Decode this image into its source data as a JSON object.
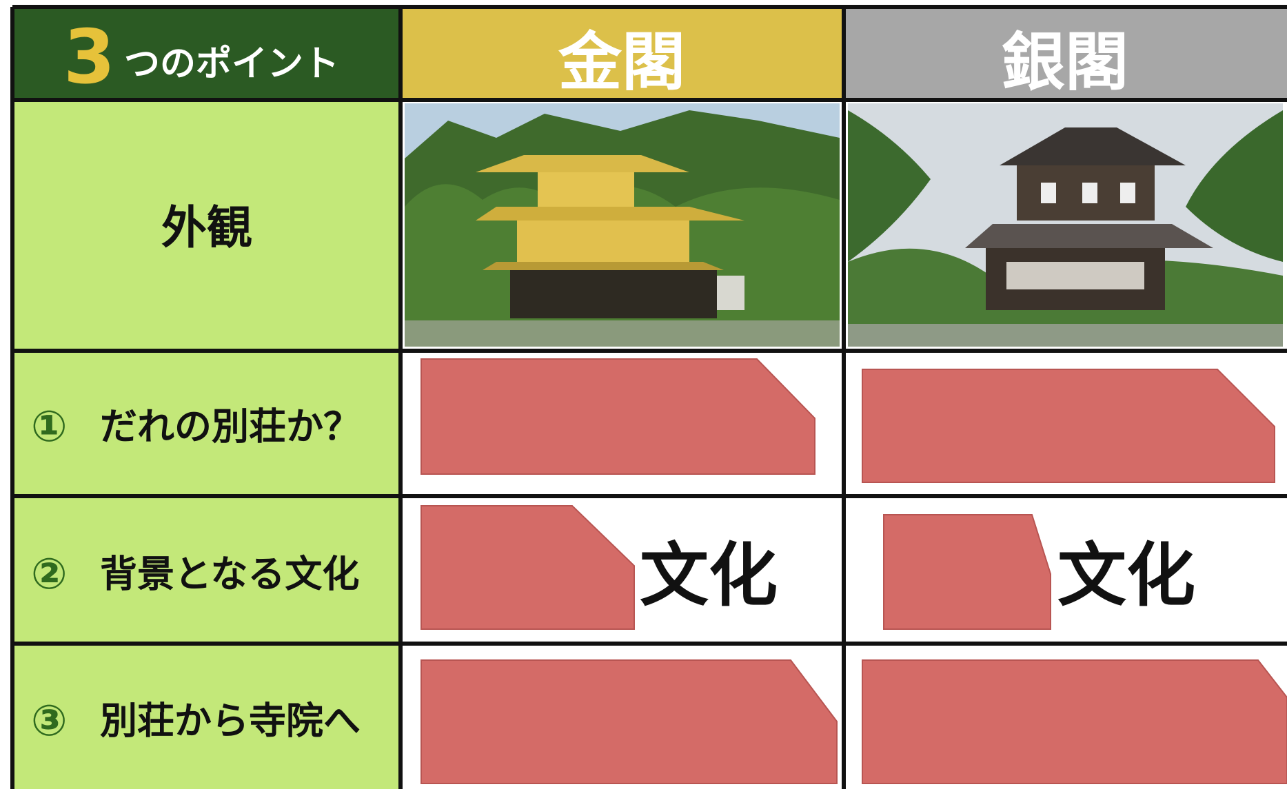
{
  "header": {
    "title_number": "3",
    "title_rest": "つのポイント",
    "columns": [
      "金閣",
      "銀閣"
    ]
  },
  "rows": [
    {
      "label": "外観"
    },
    {
      "number": "①",
      "label": "だれの別荘か？"
    },
    {
      "number": "②",
      "label": "背景となる文化",
      "cells": [
        "文化",
        "文化"
      ]
    },
    {
      "number": "③",
      "label": "別荘から寺院へ"
    }
  ]
}
